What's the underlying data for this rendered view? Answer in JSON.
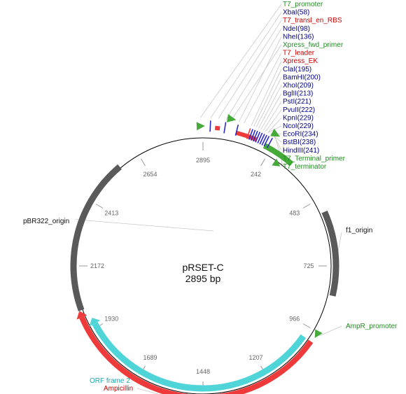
{
  "plasmid": {
    "name": "pRSET-C",
    "length_label": "2895 bp",
    "length": 2895
  },
  "colors": {
    "backbone": "#000000",
    "gray_feature": "#5a5a5a",
    "green_feature": "#46aa3a",
    "red_feature": "#ee3a3a",
    "blue_site": "#2a2ac8",
    "cyan_feature": "#4fd4d8",
    "label_green": "#1f8c1f",
    "label_red": "#cc0000",
    "label_blue": "#00008b",
    "label_cyan": "#1aa6b0",
    "label_black": "#111111",
    "leader_line": "#c8c8c8"
  },
  "ticks": [
    {
      "label": "2895",
      "angle": 0
    },
    {
      "label": "242",
      "angle": 30
    },
    {
      "label": "483",
      "angle": 60
    },
    {
      "label": "725",
      "angle": 90
    },
    {
      "label": "966",
      "angle": 120
    },
    {
      "label": "1207",
      "angle": 150
    },
    {
      "label": "1448",
      "angle": 180
    },
    {
      "label": "1689",
      "angle": 210
    },
    {
      "label": "1930",
      "angle": 240
    },
    {
      "label": "2172",
      "angle": 270
    },
    {
      "label": "2413",
      "angle": 300
    },
    {
      "label": "2654",
      "angle": 330
    }
  ],
  "arcs": [
    {
      "name": "pbr322-origin-arc",
      "start": 250,
      "end": 320,
      "r": 185,
      "w": 9,
      "color": "#5a5a5a"
    },
    {
      "name": "f1-origin-arc",
      "start": 66,
      "end": 103,
      "r": 190,
      "w": 9,
      "color": "#5a5a5a"
    },
    {
      "name": "ampicillin-arc",
      "start": 125,
      "end": 247,
      "r": 188,
      "w": 8,
      "color": "#ee3a3a",
      "arrow": "end"
    },
    {
      "name": "orf-frame-2-arc",
      "start": 125,
      "end": 242,
      "r": 175,
      "w": 9,
      "color": "#4fd4d8",
      "arrow": "end"
    },
    {
      "name": "t7-terminator-arc",
      "start": 27,
      "end": 41,
      "r": 193,
      "w": 8,
      "color": "#46aa3a"
    },
    {
      "name": "t7-leader-arc",
      "start": 14,
      "end": 23,
      "r": 196,
      "w": 6,
      "color": "#ee3a3a"
    },
    {
      "name": "t7-transl-en-rbs-arc",
      "start": 5,
      "end": 7,
      "r": 198,
      "w": 6,
      "color": "#ee3a3a"
    }
  ],
  "markers": [
    {
      "name": "t7-promoter-marker",
      "angle": -1,
      "r": 200,
      "type": "tri",
      "color": "#46aa3a"
    },
    {
      "name": "xbai-site",
      "angle": 3,
      "r": 200,
      "type": "bar",
      "color": "#2a2ac8"
    },
    {
      "name": "ndei-site",
      "angle": 9,
      "r": 200,
      "type": "bar",
      "color": "#2a2ac8"
    },
    {
      "name": "xpress-fwd-primer-marker",
      "angle": 11,
      "r": 214,
      "type": "tri",
      "color": "#46aa3a"
    },
    {
      "name": "nhei-site",
      "angle": 14,
      "r": 200,
      "type": "bar",
      "color": "#2a2ac8"
    },
    {
      "name": "xpress-ek-site",
      "angle": 19,
      "r": 200,
      "type": "bar",
      "color": "#ee3a3a"
    },
    {
      "name": "clai-site",
      "angle": 20,
      "r": 200,
      "type": "bar",
      "color": "#2a2ac8"
    },
    {
      "name": "bamhi-site",
      "angle": 21,
      "r": 200,
      "type": "bar",
      "color": "#2a2ac8"
    },
    {
      "name": "xhoi-site",
      "angle": 22,
      "r": 200,
      "type": "bar",
      "color": "#2a2ac8"
    },
    {
      "name": "bglii-site",
      "angle": 23,
      "r": 200,
      "type": "bar",
      "color": "#2a2ac8"
    },
    {
      "name": "psti-site",
      "angle": 24,
      "r": 200,
      "type": "bar",
      "color": "#2a2ac8"
    },
    {
      "name": "pvuii-site",
      "angle": 25,
      "r": 200,
      "type": "bar",
      "color": "#2a2ac8"
    },
    {
      "name": "kpni-site",
      "angle": 26,
      "r": 200,
      "type": "bar",
      "color": "#2a2ac8"
    },
    {
      "name": "ecori-site",
      "angle": 27,
      "r": 200,
      "type": "bar",
      "color": "#2a2ac8"
    },
    {
      "name": "hindiii-site",
      "angle": 28.5,
      "r": 200,
      "type": "bar",
      "color": "#2a2ac8"
    },
    {
      "name": "t7-terminal-primer-marker",
      "angle": 29,
      "r": 215,
      "type": "tri",
      "color": "#46aa3a"
    },
    {
      "name": "t7-terminator-end-marker",
      "angle": 36,
      "r": 180,
      "type": "tri",
      "color": "#46aa3a"
    },
    {
      "name": "ampr-promoter-marker",
      "angle": 121,
      "r": 190,
      "type": "tri",
      "color": "#46aa3a"
    }
  ],
  "labels": [
    {
      "name": "t7-promoter-label",
      "text": "T7_promoter",
      "color": "#1f8c1f",
      "anchor": -1
    },
    {
      "name": "xbai-label",
      "text": "XbaI(58)",
      "color": "#00008b",
      "anchor": 3
    },
    {
      "name": "t7-transl-en-rbs-label",
      "text": "T7_transl_en_RBS",
      "color": "#cc0000",
      "anchor": 6
    },
    {
      "name": "ndei-label",
      "text": "NdeI(98)",
      "color": "#00008b",
      "anchor": 9
    },
    {
      "name": "nhei-label",
      "text": "NheI(136)",
      "color": "#00008b",
      "anchor": 14
    },
    {
      "name": "xpress-fwd-primer-label",
      "text": "Xpress_fwd_primer",
      "color": "#1f8c1f",
      "anchor": 11
    },
    {
      "name": "t7-leader-label",
      "text": "T7_leader",
      "color": "#cc0000",
      "anchor": 16
    },
    {
      "name": "xpress-ek-label",
      "text": "Xpress_EK",
      "color": "#cc0000",
      "anchor": 19
    },
    {
      "name": "clai-label",
      "text": "ClaI(195)",
      "color": "#00008b",
      "anchor": 20
    },
    {
      "name": "bamhi-label",
      "text": "BamHI(200)",
      "color": "#00008b",
      "anchor": 21
    },
    {
      "name": "xhoi-label",
      "text": "XhoI(209)",
      "color": "#00008b",
      "anchor": 22
    },
    {
      "name": "bglii-label",
      "text": "BglII(213)",
      "color": "#00008b",
      "anchor": 23
    },
    {
      "name": "psti-label",
      "text": "PstI(221)",
      "color": "#00008b",
      "anchor": 24
    },
    {
      "name": "pvuii-label",
      "text": "PvuII(222)",
      "color": "#00008b",
      "anchor": 25
    },
    {
      "name": "kpni-label",
      "text": "KpnI(229)",
      "color": "#00008b",
      "anchor": 26
    },
    {
      "name": "ncoi-label",
      "text": "NcoI(229)",
      "color": "#00008b",
      "anchor": 26
    },
    {
      "name": "ecori-label",
      "text": "EcoRI(234)",
      "color": "#00008b",
      "anchor": 27
    },
    {
      "name": "bstbi-label",
      "text": "BstBI(238)",
      "color": "#00008b",
      "anchor": 28
    },
    {
      "name": "hindiii-label",
      "text": "HindIII(241)",
      "color": "#00008b",
      "anchor": 28.5
    },
    {
      "name": "t7-terminal-primer-label",
      "text": "T7_Terminal_primer",
      "color": "#1f8c1f",
      "anchor": 29
    },
    {
      "name": "t7-terminator-label",
      "text": "T7_terminator",
      "color": "#1f8c1f",
      "anchor": 33
    }
  ],
  "side_labels": [
    {
      "name": "pbr322-origin-label",
      "text": "pBR322_origin",
      "color": "#111111",
      "anchor": 290,
      "side": "left"
    },
    {
      "name": "f1-origin-label",
      "text": "f1_origin",
      "color": "#111111",
      "anchor": 84,
      "side": "right"
    },
    {
      "name": "ampr-promoter-label",
      "text": "AmpR_promoter",
      "color": "#1f8c1f",
      "anchor": 121,
      "side": "right"
    },
    {
      "name": "orf-frame-2-label",
      "text": "ORF frame 2",
      "color": "#1aa6b0",
      "anchor": 185,
      "side": "left"
    },
    {
      "name": "ampicillin-label",
      "text": "Ampicillin",
      "color": "#cc0000",
      "anchor": 190,
      "side": "left"
    }
  ]
}
